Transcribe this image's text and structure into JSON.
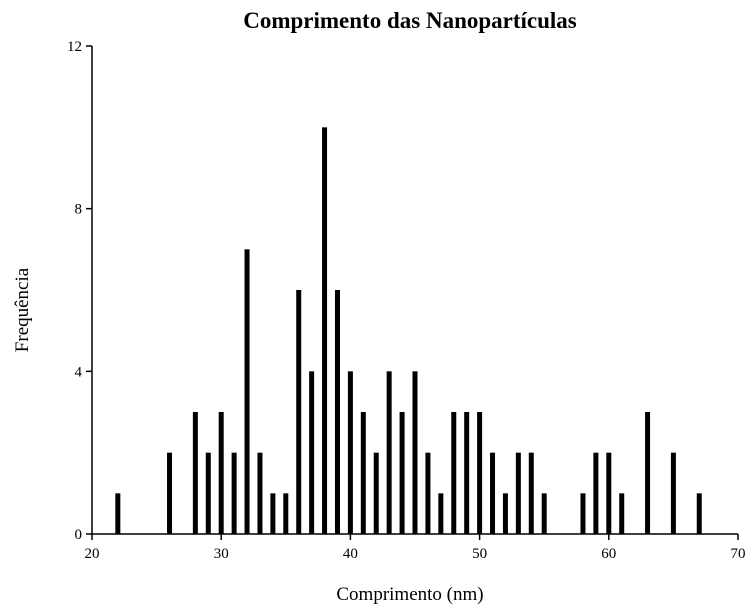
{
  "chart_data": {
    "type": "bar",
    "title": "Comprimento das Nanopartículas",
    "x_label": "Comprimento (nm)",
    "y_label": "Frequência",
    "x": [
      22,
      26,
      28,
      29,
      30,
      31,
      32,
      33,
      34,
      35,
      36,
      37,
      38,
      39,
      40,
      41,
      42,
      43,
      44,
      45,
      46,
      47,
      48,
      49,
      50,
      51,
      52,
      53,
      54,
      55,
      58,
      59,
      60,
      61,
      63,
      65,
      67
    ],
    "values": [
      1,
      2,
      3,
      2,
      3,
      2,
      7,
      2,
      1,
      1,
      6,
      4,
      10,
      6,
      4,
      3,
      2,
      4,
      3,
      4,
      2,
      1,
      3,
      3,
      3,
      2,
      1,
      2,
      2,
      1,
      1,
      2,
      2,
      1,
      3,
      2,
      1
    ],
    "color": "#000000",
    "xlim": [
      20,
      70
    ],
    "xticks": [
      20,
      30,
      40,
      50,
      60,
      70
    ],
    "ylim": [
      0,
      12
    ],
    "yticks": [
      0,
      4,
      8,
      12
    ]
  }
}
